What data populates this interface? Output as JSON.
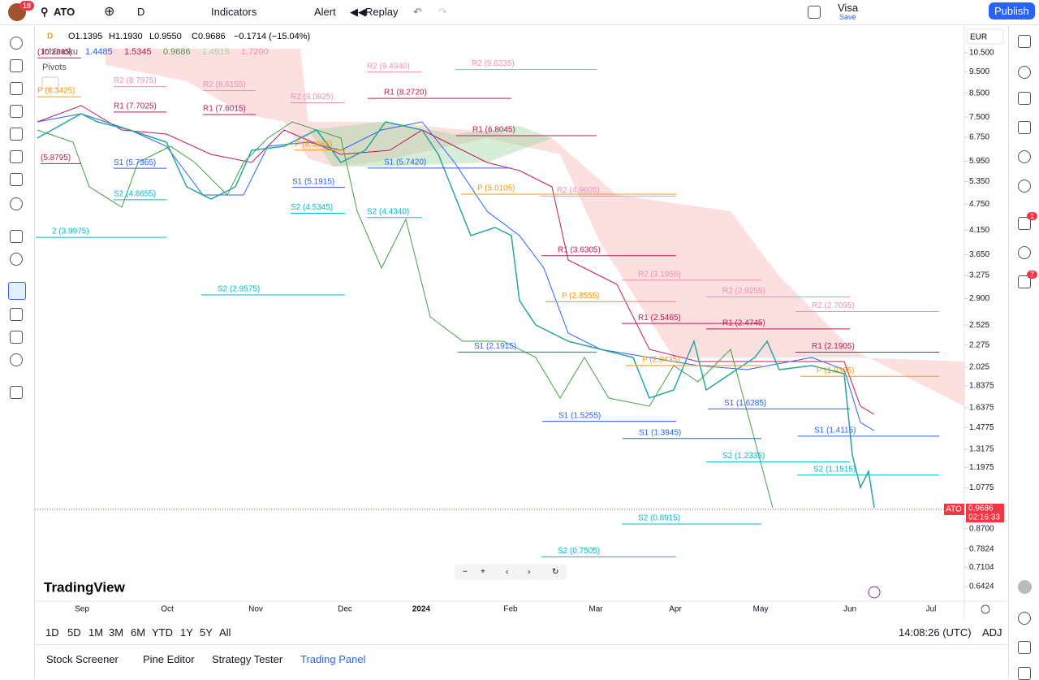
{
  "topbar": {
    "badge": "18",
    "symbol": "ATO",
    "interval": "D",
    "indicators": "Indicators",
    "alert": "Alert",
    "replay": "Replay",
    "layout_name": "Visa",
    "save": "Save",
    "publish": "Publish"
  },
  "legend": {
    "interval": "D",
    "open": "O1.1395",
    "high": "H1.1930",
    "low": "L0.9550",
    "close": "C0.9686",
    "change": "−0.1714 (−15.04%)",
    "ichimoku": "Ichimoku",
    "ichimoku_values": [
      "1.4485",
      "1.5345",
      "0.9686",
      "1.4915",
      "1.7200"
    ],
    "pivots": "Pivots"
  },
  "price_axis": {
    "currency": "EUR",
    "ticks": [
      {
        "value": 10.5,
        "label": "10.500"
      },
      {
        "value": 9.5,
        "label": "9.500"
      },
      {
        "value": 8.5,
        "label": "8.500"
      },
      {
        "value": 7.5,
        "label": "7.500"
      },
      {
        "value": 6.75,
        "label": "6.750"
      },
      {
        "value": 5.95,
        "label": "5.950"
      },
      {
        "value": 5.35,
        "label": "5.350"
      },
      {
        "value": 4.75,
        "label": "4.750"
      },
      {
        "value": 4.15,
        "label": "4.150"
      },
      {
        "value": 3.65,
        "label": "3.650"
      },
      {
        "value": 3.275,
        "label": "3.275"
      },
      {
        "value": 2.9,
        "label": "2.900"
      },
      {
        "value": 2.525,
        "label": "2.525"
      },
      {
        "value": 2.275,
        "label": "2.275"
      },
      {
        "value": 2.025,
        "label": "2.025"
      },
      {
        "value": 1.8375,
        "label": "1.8375"
      },
      {
        "value": 1.6375,
        "label": "1.6375"
      },
      {
        "value": 1.4775,
        "label": "1.4775"
      },
      {
        "value": 1.3175,
        "label": "1.3175"
      },
      {
        "value": 1.1975,
        "label": "1.1975"
      },
      {
        "value": 1.0775,
        "label": "1.0775"
      },
      {
        "value": 0.87,
        "label": "0.8700"
      },
      {
        "value": 0.7824,
        "label": "0.7824"
      },
      {
        "value": 0.7104,
        "label": "0.7104"
      },
      {
        "value": 0.6424,
        "label": "0.6424"
      }
    ],
    "last": {
      "symbol": "ATO",
      "value": 0.9686,
      "label": "0.9686",
      "countdown": "02:16:33"
    }
  },
  "pivots": [
    {
      "label": "(10.2245)",
      "level": 10.2245
    },
    {
      "label": "P (8.3425)",
      "level": 8.3425
    },
    {
      "label": "(5.8795)",
      "level": 5.8795
    },
    {
      "label": "2 (3.9975)",
      "level": 3.9975
    },
    {
      "label": "R2 (8.7975)",
      "level": 8.7975
    },
    {
      "label": "R1 (7.7025)",
      "level": 7.7025
    },
    {
      "label": "S1 (5.7365)",
      "level": 5.7365
    },
    {
      "label": "S2 (4.8655)",
      "level": 4.8655
    },
    {
      "label": "R2 (8.6155)",
      "level": 8.6155
    },
    {
      "label": "R1 (7.6015)",
      "level": 7.6015
    },
    {
      "label": "S2 (2.9575)",
      "level": 2.9575
    },
    {
      "label": "R2 (8.0825)",
      "level": 8.0825
    },
    {
      "label": "P (6.3085)",
      "level": 6.3085
    },
    {
      "label": "S1 (5.1915)",
      "level": 5.1915
    },
    {
      "label": "S2 (4.5345)",
      "level": 4.5345
    },
    {
      "label": "R2 (9.4940)",
      "level": 9.494
    },
    {
      "label": "R1 (8.2720)",
      "level": 8.272
    },
    {
      "label": "S1 (5.7420)",
      "level": 5.742
    },
    {
      "label": "S2 (4.4340)",
      "level": 4.434
    },
    {
      "label": "R2 (9.6235)",
      "level": 9.6235
    },
    {
      "label": "R1 (6.8045)",
      "level": 6.8045
    },
    {
      "label": "P (5.0105)",
      "level": 5.0105
    },
    {
      "label": "S1 (2.1915)",
      "level": 2.1915
    },
    {
      "label": "R2 (4.9605)",
      "level": 4.9605
    },
    {
      "label": "R1 (3.6305)",
      "level": 3.6305
    },
    {
      "label": "P (2.8555)",
      "level": 2.8555
    },
    {
      "label": "S1 (1.5255)",
      "level": 1.5255
    },
    {
      "label": "S2 (0.7505)",
      "level": 0.7505
    },
    {
      "label": "R2 (3.1955)",
      "level": 3.1955
    },
    {
      "label": "R1 (2.5465)",
      "level": 2.5465
    },
    {
      "label": "P (2.0435)",
      "level": 2.0435
    },
    {
      "label": "S1 (1.3945)",
      "level": 1.3945
    },
    {
      "label": "S2 (0.8915)",
      "level": 0.8915
    },
    {
      "label": "R2 (2.9255)",
      "level": 2.9255
    },
    {
      "label": "R1 (2.4745)",
      "level": 2.4745
    },
    {
      "label": "S1 (1.6285)",
      "level": 1.6285
    },
    {
      "label": "S2 (1.2335)",
      "level": 1.2335
    },
    {
      "label": "R2 (2.7095)",
      "level": 2.7095
    },
    {
      "label": "R1 (2.1905)",
      "level": 2.1905
    },
    {
      "label": "P (1.9305)",
      "level": 1.9305
    },
    {
      "label": "S1 (1.4115)",
      "level": 1.4115
    },
    {
      "label": "S2 (1.1515)",
      "level": 1.1515
    }
  ],
  "time_axis": [
    "Sep",
    "Oct",
    "Nov",
    "Dec",
    "2024",
    "Feb",
    "Mar",
    "Apr",
    "May",
    "Jun",
    "Jul"
  ],
  "brand": "TradingView",
  "ranges": [
    "1D",
    "5D",
    "1M",
    "3M",
    "6M",
    "YTD",
    "1Y",
    "5Y",
    "All"
  ],
  "clock": "14:08:26 (UTC)",
  "adj": "ADJ",
  "tabs": [
    "Stock Screener",
    "Pine Editor",
    "Strategy Tester",
    "Trading Panel"
  ],
  "sidebar_badges": [
    "1",
    "7"
  ]
}
